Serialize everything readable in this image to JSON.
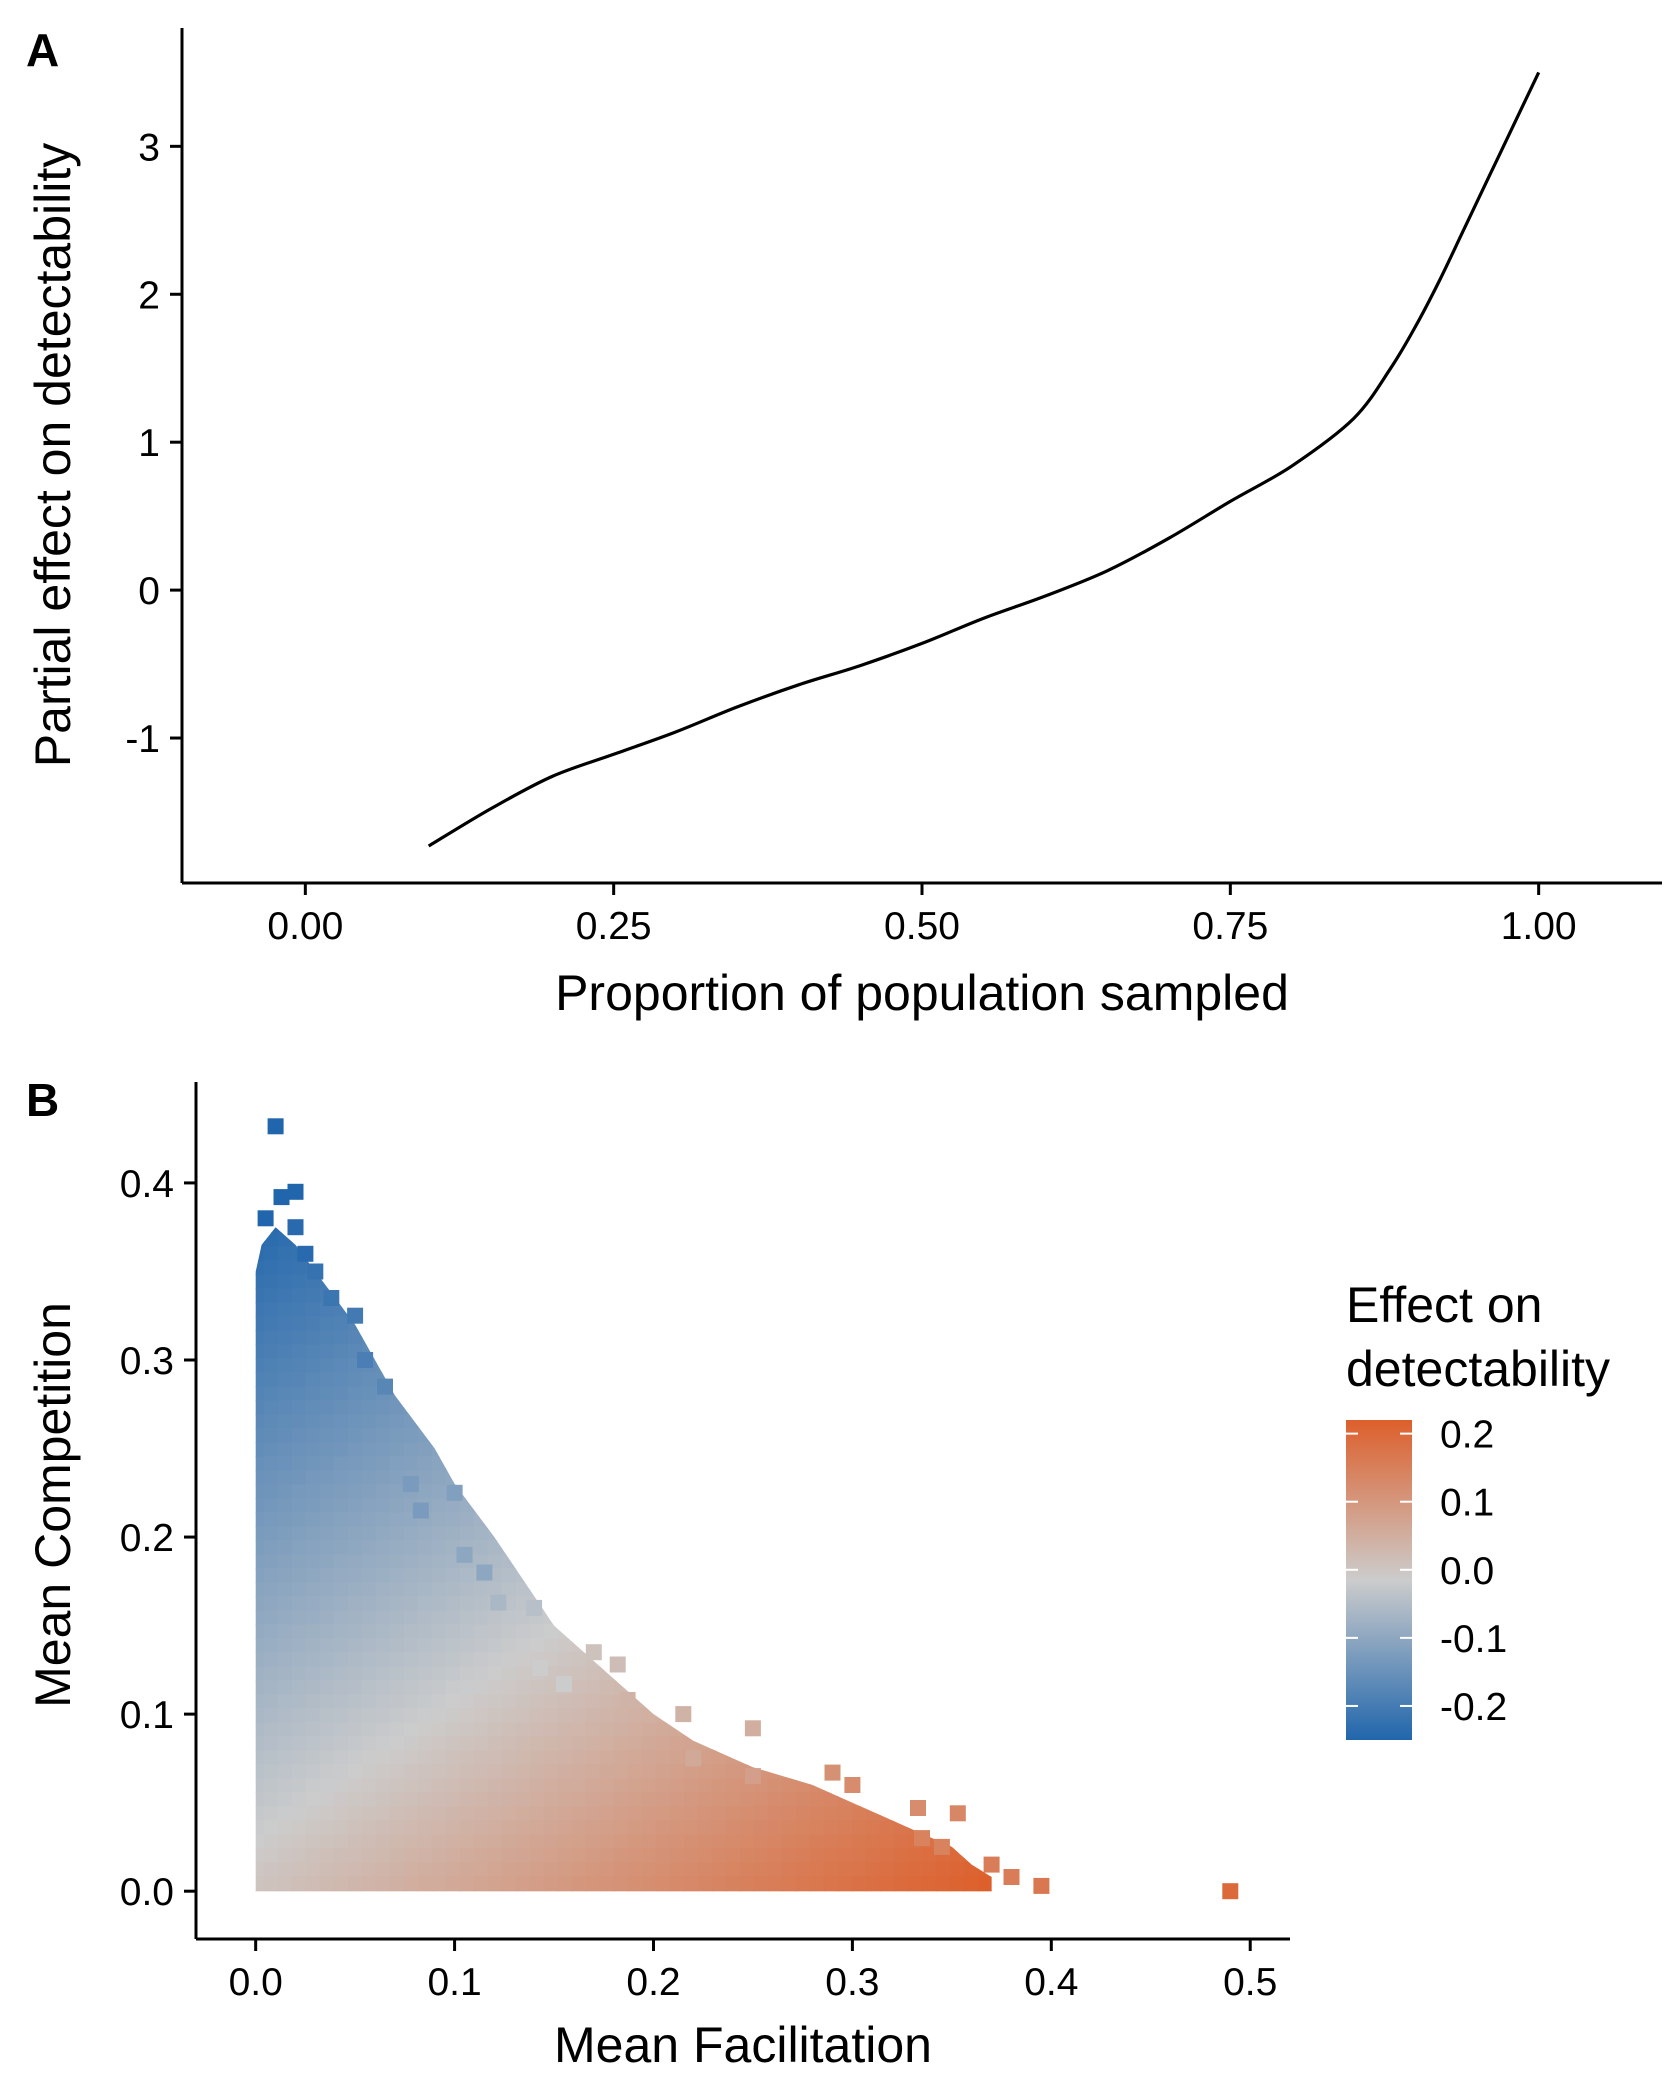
{
  "chart_data": [
    {
      "panel": "A",
      "type": "line",
      "xlabel": "Proportion of population sampled",
      "ylabel": "Partial effect on detectability",
      "xlim": [
        -0.1,
        1.1
      ],
      "ylim": [
        -1.98,
        3.8
      ],
      "x_ticks": [
        "0.00",
        "0.25",
        "0.50",
        "0.75",
        "1.00"
      ],
      "x_tick_values": [
        0,
        0.25,
        0.5,
        0.75,
        1.0
      ],
      "y_ticks": [
        "-1",
        "0",
        "1",
        "2",
        "3"
      ],
      "y_tick_values": [
        -1,
        0,
        1,
        2,
        3
      ],
      "grid": false,
      "series": [
        {
          "color": "#000000",
          "x": [
            0.1,
            0.15,
            0.2,
            0.25,
            0.3,
            0.35,
            0.4,
            0.45,
            0.5,
            0.55,
            0.6,
            0.65,
            0.7,
            0.75,
            0.8,
            0.85,
            0.88,
            0.9,
            0.92,
            0.94,
            0.96,
            0.98,
            1.0
          ],
          "y": [
            -1.73,
            -1.48,
            -1.26,
            -1.11,
            -0.96,
            -0.79,
            -0.64,
            -0.51,
            -0.36,
            -0.19,
            -0.04,
            0.13,
            0.35,
            0.6,
            0.84,
            1.16,
            1.5,
            1.78,
            2.1,
            2.45,
            2.8,
            3.15,
            3.5
          ]
        }
      ]
    },
    {
      "panel": "B",
      "type": "heatmap",
      "xlabel": "Mean Facilitation",
      "ylabel": "Mean Competition",
      "xlim": [
        -0.03,
        0.52
      ],
      "ylim": [
        -0.027,
        0.457
      ],
      "x_ticks": [
        "0.0",
        "0.1",
        "0.2",
        "0.3",
        "0.4",
        "0.5"
      ],
      "x_tick_values": [
        0,
        0.1,
        0.2,
        0.3,
        0.4,
        0.5
      ],
      "y_ticks": [
        "0.0",
        "0.1",
        "0.2",
        "0.3",
        "0.4"
      ],
      "y_tick_values": [
        0,
        0.1,
        0.2,
        0.3,
        0.4
      ],
      "grid": false,
      "fill_region_boundary": [
        [
          0.0,
          0.35
        ],
        [
          0.003,
          0.365
        ],
        [
          0.01,
          0.375
        ],
        [
          0.02,
          0.365
        ],
        [
          0.03,
          0.35
        ],
        [
          0.05,
          0.32
        ],
        [
          0.07,
          0.28
        ],
        [
          0.09,
          0.25
        ],
        [
          0.1,
          0.23
        ],
        [
          0.12,
          0.2
        ],
        [
          0.15,
          0.15
        ],
        [
          0.18,
          0.12
        ],
        [
          0.2,
          0.1
        ],
        [
          0.22,
          0.085
        ],
        [
          0.25,
          0.07
        ],
        [
          0.28,
          0.06
        ],
        [
          0.3,
          0.05
        ],
        [
          0.33,
          0.035
        ],
        [
          0.35,
          0.025
        ],
        [
          0.36,
          0.015
        ],
        [
          0.37,
          0.008
        ],
        [
          0.37,
          0.0
        ],
        [
          0.0,
          0.0
        ]
      ],
      "outlier_points": [
        [
          0.49,
          0.0,
          0.2
        ],
        [
          0.395,
          0.003,
          0.17
        ],
        [
          0.38,
          0.008,
          0.16
        ],
        [
          0.37,
          0.015,
          0.16
        ],
        [
          0.345,
          0.025,
          0.15
        ],
        [
          0.335,
          0.03,
          0.15
        ],
        [
          0.353,
          0.044,
          0.14
        ],
        [
          0.333,
          0.047,
          0.13
        ],
        [
          0.3,
          0.06,
          0.13
        ],
        [
          0.29,
          0.067,
          0.12
        ],
        [
          0.25,
          0.065,
          0.09
        ],
        [
          0.22,
          0.075,
          0.07
        ],
        [
          0.215,
          0.1,
          0.05
        ],
        [
          0.25,
          0.092,
          0.06
        ],
        [
          0.187,
          0.108,
          0.05
        ],
        [
          0.182,
          0.128,
          0.03
        ],
        [
          0.17,
          0.135,
          0.02
        ],
        [
          0.155,
          0.117,
          0.0
        ],
        [
          0.143,
          0.126,
          0.0
        ],
        [
          0.14,
          0.16,
          -0.03
        ],
        [
          0.122,
          0.163,
          -0.05
        ],
        [
          0.115,
          0.18,
          -0.09
        ],
        [
          0.105,
          0.19,
          -0.09
        ],
        [
          0.1,
          0.225,
          -0.11
        ],
        [
          0.083,
          0.215,
          -0.12
        ],
        [
          0.078,
          0.23,
          -0.12
        ],
        [
          0.065,
          0.285,
          -0.17
        ],
        [
          0.055,
          0.3,
          -0.19
        ],
        [
          0.05,
          0.325,
          -0.2
        ],
        [
          0.038,
          0.335,
          -0.21
        ],
        [
          0.03,
          0.35,
          -0.22
        ],
        [
          0.025,
          0.36,
          -0.24
        ],
        [
          0.02,
          0.375,
          -0.24
        ],
        [
          0.02,
          0.395,
          -0.27
        ],
        [
          0.013,
          0.392,
          -0.27
        ],
        [
          0.01,
          0.432,
          -0.3
        ],
        [
          0.005,
          0.38,
          -0.25
        ]
      ],
      "legend": {
        "title": [
          "Effect on",
          "detectability"
        ],
        "position": "right",
        "range": [
          -0.25,
          0.22
        ],
        "ticks": [
          "0.2",
          "0.1",
          "0.0",
          "-0.1",
          "-0.2"
        ],
        "tick_values": [
          0.2,
          0.1,
          0.0,
          -0.1,
          -0.2
        ],
        "colors": {
          "low": "#2166ac",
          "mid": "#cccccc",
          "high": "#dd5f2b"
        }
      }
    }
  ]
}
